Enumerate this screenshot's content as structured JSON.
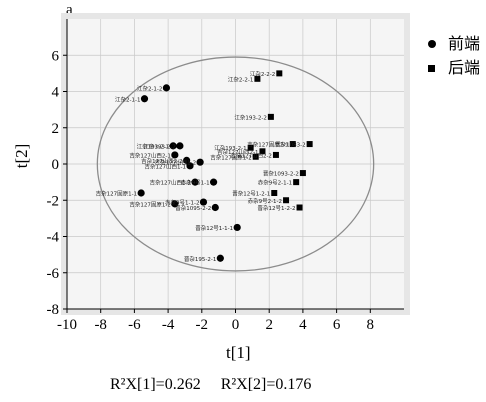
{
  "panel_label": "a",
  "stats": {
    "r2x1_label": "R²X[1]=0.262",
    "r2x2_label": "R²X[2]=0.176"
  },
  "chart_data": {
    "type": "scatter",
    "xlabel": "t[1]",
    "ylabel": "t[2]",
    "xlim": [
      -10,
      10
    ],
    "ylim": [
      -8,
      8
    ],
    "xticks": [
      -10,
      -8,
      -6,
      -4,
      -2,
      0,
      2,
      4,
      6,
      8
    ],
    "yticks": [
      -8,
      -6,
      -4,
      -2,
      0,
      2,
      4,
      6
    ],
    "grid": true,
    "legend_position": "outside-right-top",
    "ellipse": {
      "center": [
        0,
        0
      ],
      "radii": [
        8.2,
        5.9
      ]
    },
    "colors": {
      "points": "#000000",
      "ellipse": "#8c8c8c",
      "grid": "#c8c8c8",
      "plot_bg": "#f5f5f5",
      "panel_bg": "#e6e6e6"
    },
    "series": [
      {
        "name": "前端",
        "marker": "circle",
        "points": [
          {
            "x": -4.1,
            "y": 4.2,
            "label": "江杂2-1-2"
          },
          {
            "x": -5.4,
            "y": 3.6,
            "label": "江杂2-1-1"
          },
          {
            "x": -3.7,
            "y": 1.0,
            "label": "江杂193-2-1"
          },
          {
            "x": -3.3,
            "y": 1.0,
            "label": "江杂193-2-2"
          },
          {
            "x": -3.6,
            "y": 0.5,
            "label": "吉杂127山西2-1"
          },
          {
            "x": -2.9,
            "y": 0.2,
            "label": "吉杂127山西2-2"
          },
          {
            "x": -2.1,
            "y": 0.1,
            "label": "吉杂127山西1-2"
          },
          {
            "x": -2.7,
            "y": -0.1,
            "label": "吉杂127山西1-1"
          },
          {
            "x": -1.3,
            "y": -1.0,
            "label": "赤杂9号1-1"
          },
          {
            "x": -2.4,
            "y": -1.0,
            "label": "吉杂127山西1-1"
          },
          {
            "x": -5.6,
            "y": -1.6,
            "label": "吉杂127固原1-1"
          },
          {
            "x": -3.6,
            "y": -2.2,
            "label": "吉杂127固原1-2"
          },
          {
            "x": -1.9,
            "y": -2.1,
            "label": "赤杂9号1-1-2"
          },
          {
            "x": -1.2,
            "y": -2.4,
            "label": "晋杂1095-2-2"
          },
          {
            "x": 0.1,
            "y": -3.5,
            "label": "晋杂12号1-1-1"
          },
          {
            "x": -0.9,
            "y": -5.2,
            "label": "晋杂195-2-1"
          }
        ]
      },
      {
        "name": "后端",
        "marker": "square",
        "points": [
          {
            "x": 1.3,
            "y": 4.7,
            "label": "江杂2-2-1"
          },
          {
            "x": 2.6,
            "y": 5.0,
            "label": "江杂2-2-2"
          },
          {
            "x": 2.1,
            "y": 2.6,
            "label": "江杂193-2-2"
          },
          {
            "x": 0.9,
            "y": 0.9,
            "label": "江杂193-2-1"
          },
          {
            "x": 1.6,
            "y": 0.7,
            "label": "吉杂127山西2-1"
          },
          {
            "x": 2.4,
            "y": 0.5,
            "label": "吉杂127山西2-2"
          },
          {
            "x": 3.4,
            "y": 1.1,
            "label": "吉杂127固原2-1"
          },
          {
            "x": 4.4,
            "y": 1.1,
            "label": "晋杂1083-2"
          },
          {
            "x": 1.2,
            "y": 0.4,
            "label": "吉杂127固原1-2"
          },
          {
            "x": 4.0,
            "y": -0.5,
            "label": "晋杂1093-2-2"
          },
          {
            "x": 3.6,
            "y": -1.0,
            "label": "赤杂9号2-1-1"
          },
          {
            "x": 2.3,
            "y": -1.6,
            "label": "晋杂12号1-2-1"
          },
          {
            "x": 3.0,
            "y": -2.0,
            "label": "赤杂9号2-1-2"
          },
          {
            "x": 3.8,
            "y": -2.4,
            "label": "晋杂12号1-2-2"
          }
        ]
      }
    ]
  }
}
